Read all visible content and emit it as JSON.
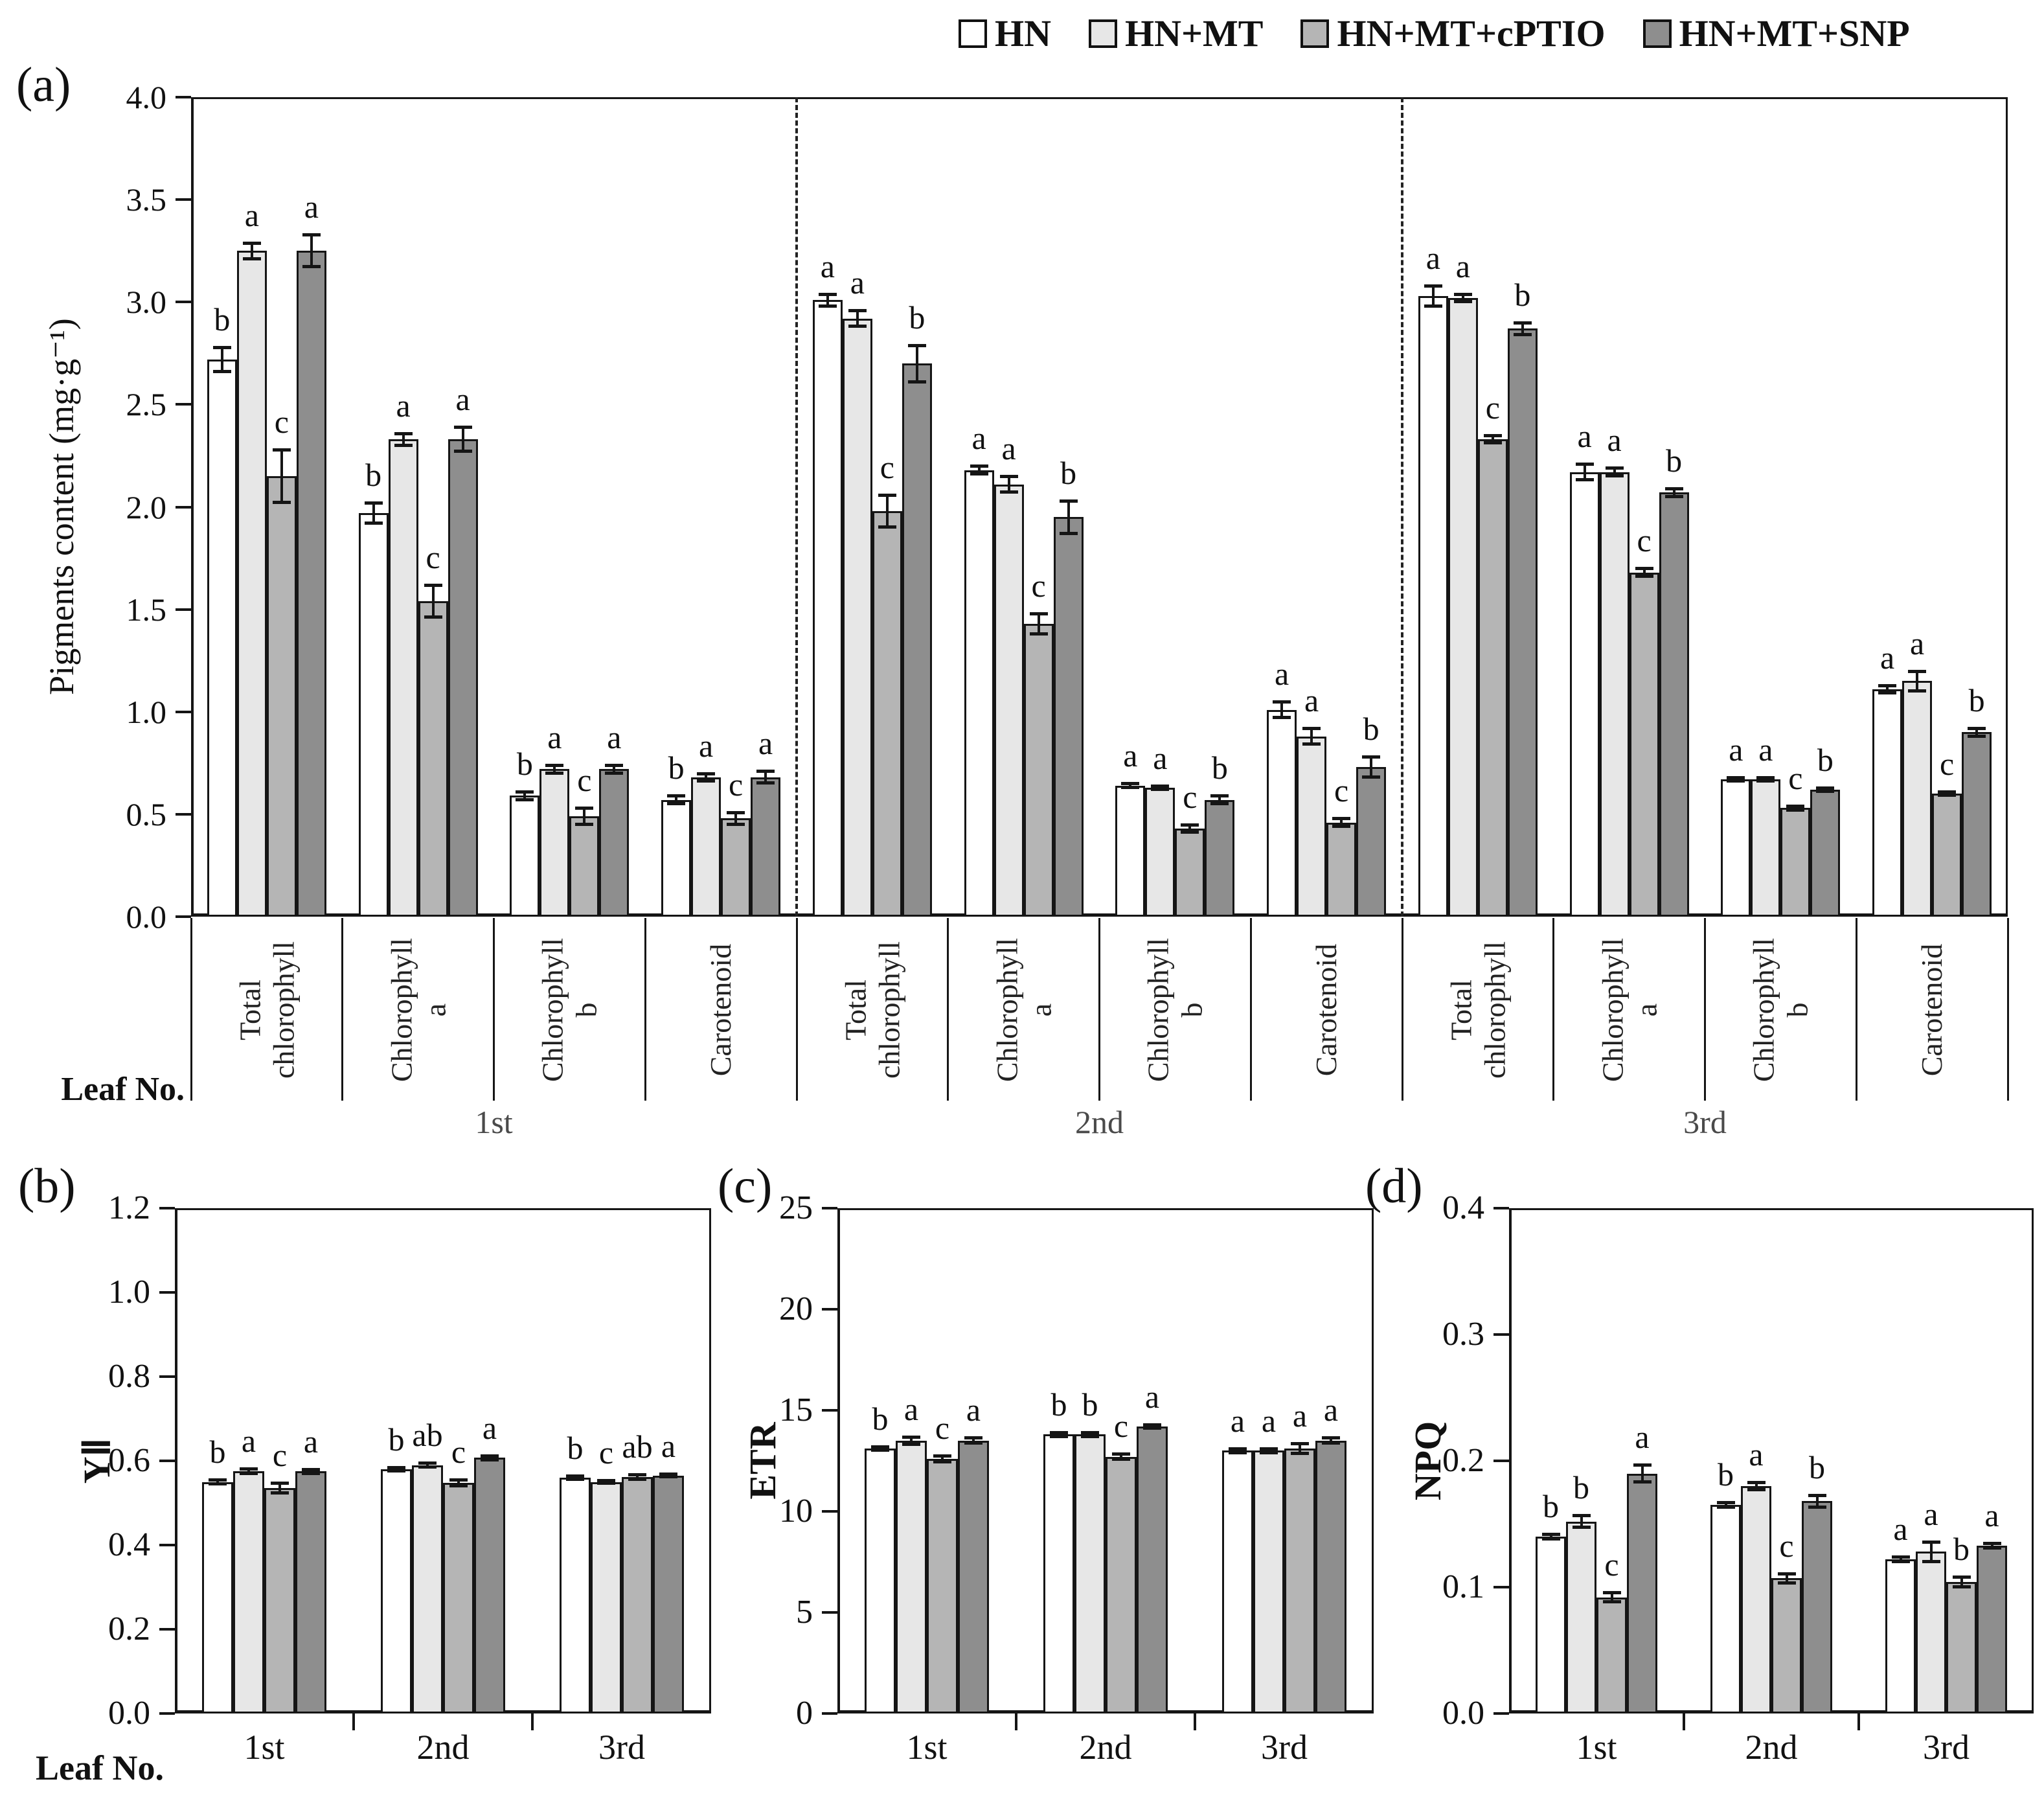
{
  "figure": {
    "panel_tags": {
      "a": "(a)",
      "b": "(b)",
      "c": "(c)",
      "d": "(d)"
    },
    "leaf_axis_label": "Leaf No.",
    "colors": {
      "bar_fills": [
        "#ffffff",
        "#e7e7e7",
        "#b5b5b5",
        "#8e8e8e"
      ],
      "bar_border": "#151515",
      "axis": "#151515"
    }
  },
  "legend": {
    "items": [
      {
        "label": "HN"
      },
      {
        "label": "HN+MT"
      },
      {
        "label": "HN+MT+cPTIO"
      },
      {
        "label": "HN+MT+SNP"
      }
    ]
  },
  "chart_data": [
    {
      "id": "a",
      "type": "bar",
      "title": "",
      "ylabel": "Pigments content (mg·g⁻¹)",
      "xlabel": "Leaf No.",
      "ylim": [
        0,
        4.0
      ],
      "ytick_labels": [
        "4.0",
        "3.5",
        "3.0",
        "2.5",
        "2.0",
        "1.5",
        "1.0",
        "0.5",
        "0.0"
      ],
      "grid": false,
      "legend_position": "top-right",
      "series_names": [
        "HN",
        "HN+MT",
        "HN+MT+cPTIO",
        "HN+MT+SNP"
      ],
      "groups": [
        {
          "leaf": "1st",
          "categories": [
            {
              "label": "Total\nchlorophyll",
              "values": [
                2.72,
                3.25,
                2.15,
                3.25
              ],
              "errors": [
                0.06,
                0.04,
                0.13,
                0.08
              ],
              "letters": [
                "b",
                "a",
                "c",
                "a"
              ]
            },
            {
              "label": "Chlorophyll\na",
              "values": [
                1.97,
                2.33,
                1.54,
                2.33
              ],
              "errors": [
                0.05,
                0.03,
                0.08,
                0.06
              ],
              "letters": [
                "b",
                "a",
                "c",
                "a"
              ]
            },
            {
              "label": "Chlorophyll\nb",
              "values": [
                0.59,
                0.72,
                0.49,
                0.72
              ],
              "errors": [
                0.02,
                0.02,
                0.04,
                0.02
              ],
              "letters": [
                "b",
                "a",
                "c",
                "a"
              ]
            },
            {
              "label": "Carotenoid",
              "values": [
                0.57,
                0.68,
                0.48,
                0.68
              ],
              "errors": [
                0.02,
                0.02,
                0.03,
                0.03
              ],
              "letters": [
                "b",
                "a",
                "c",
                "a"
              ]
            }
          ]
        },
        {
          "leaf": "2nd",
          "categories": [
            {
              "label": "Total\nchlorophyll",
              "values": [
                3.01,
                2.92,
                1.98,
                2.7
              ],
              "errors": [
                0.03,
                0.04,
                0.08,
                0.09
              ],
              "letters": [
                "a",
                "a",
                "c",
                "b"
              ]
            },
            {
              "label": "Chlorophyll\na",
              "values": [
                2.18,
                2.11,
                1.43,
                1.95
              ],
              "errors": [
                0.02,
                0.04,
                0.05,
                0.08
              ],
              "letters": [
                "a",
                "a",
                "c",
                "b"
              ]
            },
            {
              "label": "Chlorophyll\nb",
              "values": [
                0.64,
                0.63,
                0.43,
                0.57
              ],
              "errors": [
                0.01,
                0.01,
                0.02,
                0.02
              ],
              "letters": [
                "a",
                "a",
                "c",
                "b"
              ]
            },
            {
              "label": "Carotenoid",
              "values": [
                1.01,
                0.88,
                0.46,
                0.73
              ],
              "errors": [
                0.04,
                0.04,
                0.02,
                0.05
              ],
              "letters": [
                "a",
                "a",
                "c",
                "b"
              ]
            }
          ]
        },
        {
          "leaf": "3rd",
          "categories": [
            {
              "label": "Total\nchlorophyll",
              "values": [
                3.03,
                3.02,
                2.33,
                2.87
              ],
              "errors": [
                0.05,
                0.02,
                0.02,
                0.03
              ],
              "letters": [
                "a",
                "a",
                "c",
                "b"
              ]
            },
            {
              "label": "Chlorophyll\na",
              "values": [
                2.17,
                2.17,
                1.68,
                2.07
              ],
              "errors": [
                0.04,
                0.02,
                0.02,
                0.02
              ],
              "letters": [
                "a",
                "a",
                "c",
                "b"
              ]
            },
            {
              "label": "Chlorophyll\nb",
              "values": [
                0.67,
                0.67,
                0.53,
                0.62
              ],
              "errors": [
                0.01,
                0.01,
                0.01,
                0.01
              ],
              "letters": [
                "a",
                "a",
                "c",
                "b"
              ]
            },
            {
              "label": "Carotenoid",
              "values": [
                1.11,
                1.15,
                0.6,
                0.9
              ],
              "errors": [
                0.02,
                0.05,
                0.01,
                0.02
              ],
              "letters": [
                "a",
                "a",
                "c",
                "b"
              ]
            }
          ]
        }
      ]
    },
    {
      "id": "b",
      "type": "bar",
      "title": "",
      "ylabel": "YⅡ",
      "xlabel": "Leaf No.",
      "ylim": [
        0,
        1.2
      ],
      "ytick_labels": [
        "1.2",
        "1.0",
        "0.8",
        "0.6",
        "0.4",
        "0.2",
        "0.0"
      ],
      "grid": false,
      "series_names": [
        "HN",
        "HN+MT",
        "HN+MT+cPTIO",
        "HN+MT+SNP"
      ],
      "groups": [
        {
          "label": "1st",
          "values": [
            0.55,
            0.575,
            0.535,
            0.575
          ],
          "errors": [
            0.005,
            0.006,
            0.012,
            0.005
          ],
          "letters": [
            "b",
            "a",
            "c",
            "a"
          ]
        },
        {
          "label": "2nd",
          "values": [
            0.58,
            0.59,
            0.548,
            0.607
          ],
          "errors": [
            0.005,
            0.005,
            0.008,
            0.005
          ],
          "letters": [
            "b",
            "ab",
            "c",
            "a"
          ]
        },
        {
          "label": "3rd",
          "values": [
            0.56,
            0.55,
            0.562,
            0.565
          ],
          "errors": [
            0.004,
            0.004,
            0.006,
            0.004
          ],
          "letters": [
            "b",
            "c",
            "ab",
            "a"
          ]
        }
      ]
    },
    {
      "id": "c",
      "type": "bar",
      "title": "",
      "ylabel": "ETR",
      "xlabel": "Leaf No.",
      "ylim": [
        0,
        25
      ],
      "ytick_labels": [
        "25",
        "20",
        "15",
        "10",
        "5",
        "0"
      ],
      "grid": false,
      "series_names": [
        "HN",
        "HN+MT",
        "HN+MT+cPTIO",
        "HN+MT+SNP"
      ],
      "groups": [
        {
          "label": "1st",
          "values": [
            13.1,
            13.5,
            12.6,
            13.5
          ],
          "errors": [
            0.1,
            0.2,
            0.15,
            0.15
          ],
          "letters": [
            "b",
            "a",
            "c",
            "a"
          ]
        },
        {
          "label": "2nd",
          "values": [
            13.8,
            13.8,
            12.7,
            14.2
          ],
          "errors": [
            0.1,
            0.1,
            0.15,
            0.1
          ],
          "letters": [
            "b",
            "b",
            "c",
            "a"
          ]
        },
        {
          "label": "3rd",
          "values": [
            13.0,
            13.0,
            13.1,
            13.5
          ],
          "errors": [
            0.1,
            0.1,
            0.25,
            0.15
          ],
          "letters": [
            "a",
            "a",
            "a",
            "a"
          ]
        }
      ]
    },
    {
      "id": "d",
      "type": "bar",
      "title": "",
      "ylabel": "NPQ",
      "xlabel": "Leaf No.",
      "ylim": [
        0,
        0.4
      ],
      "ytick_labels": [
        "0.4",
        "0.3",
        "0.2",
        "0.1",
        "0.0"
      ],
      "grid": false,
      "series_names": [
        "HN",
        "HN+MT",
        "HN+MT+cPTIO",
        "HN+MT+SNP"
      ],
      "groups": [
        {
          "label": "1st",
          "values": [
            0.14,
            0.152,
            0.092,
            0.19
          ],
          "errors": [
            0.002,
            0.005,
            0.004,
            0.007
          ],
          "letters": [
            "b",
            "b",
            "c",
            "a"
          ]
        },
        {
          "label": "2nd",
          "values": [
            0.165,
            0.18,
            0.107,
            0.168
          ],
          "errors": [
            0.002,
            0.003,
            0.004,
            0.005
          ],
          "letters": [
            "b",
            "a",
            "c",
            "b"
          ]
        },
        {
          "label": "3rd",
          "values": [
            0.122,
            0.128,
            0.104,
            0.133
          ],
          "errors": [
            0.002,
            0.008,
            0.004,
            0.002
          ],
          "letters": [
            "a",
            "a",
            "b",
            "a"
          ]
        }
      ]
    }
  ]
}
